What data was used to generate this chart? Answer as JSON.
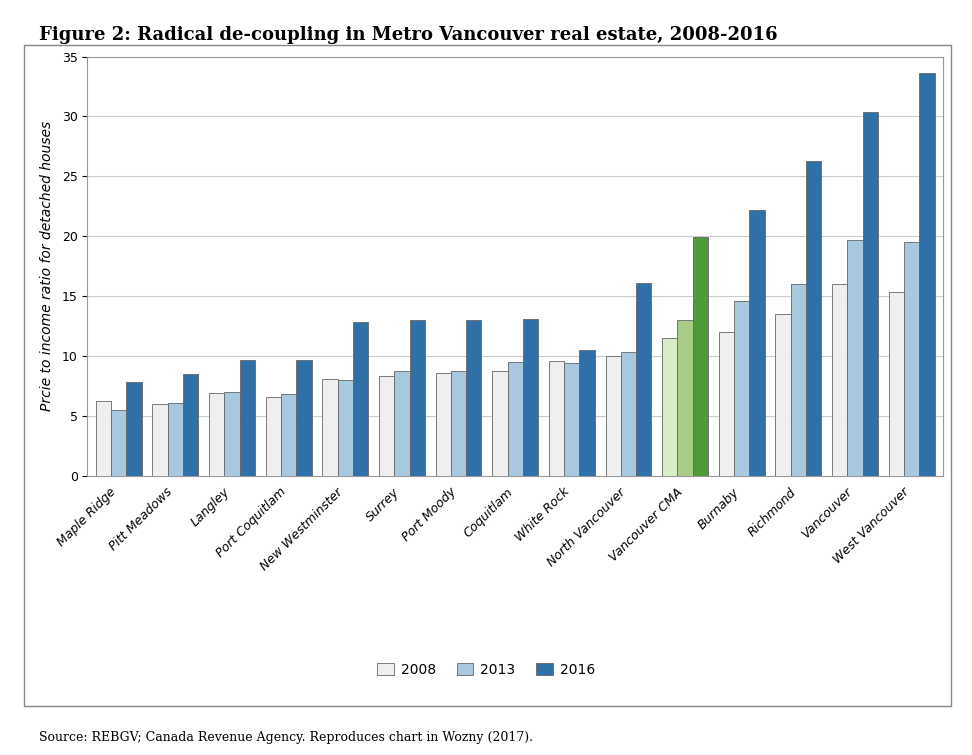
{
  "title": "Figure 2: Radical de-coupling in Metro Vancouver real estate, 2008-2016",
  "ylabel": "Prcie to income ratio for detached houses",
  "source_text": "Source: REBGV; Canada Revenue Agency. Reproduces chart in Wozny (2017).",
  "categories": [
    "Maple Ridge",
    "Pitt Meadows",
    "Langley",
    "Port Coquitlam",
    "New Westminster",
    "Surrey",
    "Port Moody",
    "Coquitlam",
    "White Rock",
    "North Vancouver",
    "Vancouver CMA",
    "Burnaby",
    "Richmond",
    "Vancouver",
    "West Vancouver"
  ],
  "values_2008": [
    6.2,
    6.0,
    6.9,
    6.6,
    8.1,
    8.3,
    8.6,
    8.7,
    9.6,
    10.0,
    11.5,
    12.0,
    13.5,
    16.0,
    15.3
  ],
  "values_2013": [
    5.5,
    6.1,
    7.0,
    6.8,
    8.0,
    8.7,
    8.7,
    9.5,
    9.4,
    10.3,
    13.0,
    14.6,
    16.0,
    19.7,
    19.5
  ],
  "values_2016": [
    7.8,
    8.5,
    9.7,
    9.7,
    12.8,
    13.0,
    13.0,
    13.1,
    10.5,
    16.1,
    19.9,
    22.2,
    26.3,
    30.4,
    33.6
  ],
  "color_2008": "#efefef",
  "color_2013": "#a8c8e0",
  "color_2016": "#3070a8",
  "color_cma_2008": "#d8ecc8",
  "color_cma_2013": "#a8cc88",
  "color_cma_2016": "#4e9a38",
  "ylim": [
    0,
    35
  ],
  "yticks": [
    0,
    5,
    10,
    15,
    20,
    25,
    30,
    35
  ],
  "figsize": [
    9.72,
    7.55
  ],
  "dpi": 100,
  "bar_width": 0.27,
  "grid_color": "#cccccc",
  "edge_color": "#666666",
  "title_fontsize": 13,
  "axis_fontsize": 10,
  "tick_fontsize": 9,
  "legend_fontsize": 10,
  "source_fontsize": 9,
  "background_color": "#ffffff",
  "plot_bg_color": "#ffffff",
  "border_color": "#999999",
  "cma_index": 10
}
